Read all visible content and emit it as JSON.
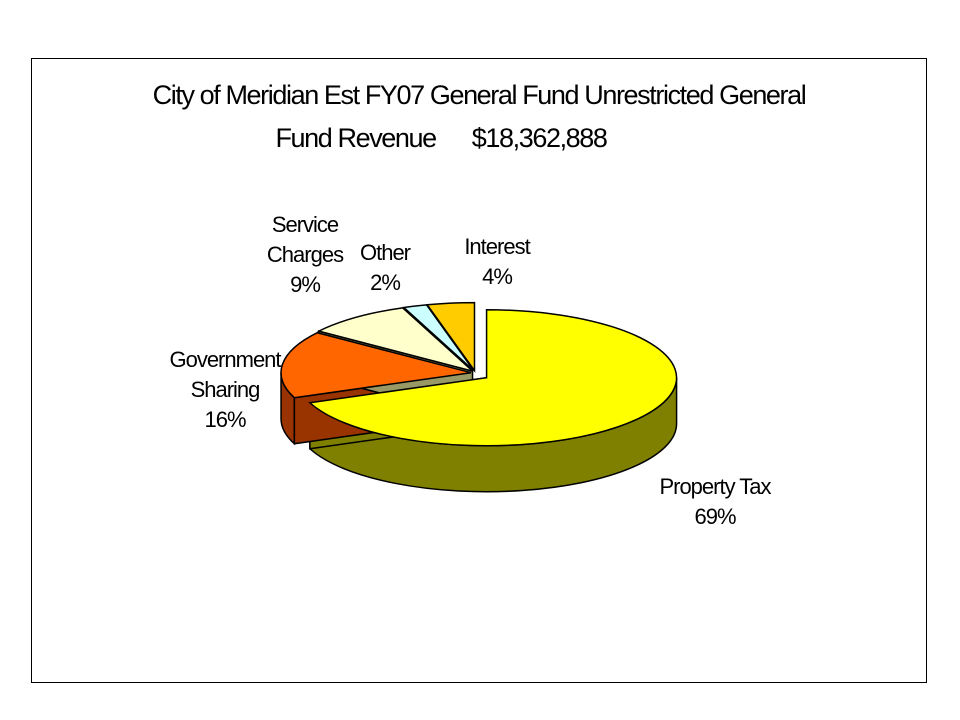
{
  "chart_data": {
    "type": "pie",
    "title": "City of Meridian Est FY07 General Fund Unrestricted General",
    "subtitle_label": "Fund Revenue",
    "subtitle_amount": "$18,362,888",
    "slices": [
      {
        "name": "Property Tax",
        "value": 69,
        "label": "69%",
        "color": "#ffff00",
        "side_color": "#808000"
      },
      {
        "name": "Government Sharing",
        "name_line1": "Government",
        "name_line2": "Sharing",
        "value": 16,
        "label": "16%",
        "color": "#ff6600",
        "side_color": "#993300"
      },
      {
        "name": "Service Charges",
        "name_line1": "Service",
        "name_line2": "Charges",
        "value": 9,
        "label": "9%",
        "color": "#ffffcc",
        "side_color": "#999966"
      },
      {
        "name": "Other",
        "value": 2,
        "label": "2%",
        "color": "#ccffff",
        "side_color": "#669999"
      },
      {
        "name": "Interest",
        "value": 4,
        "label": "4%",
        "color": "#ffcc00",
        "side_color": "#996600"
      }
    ],
    "legend": "none",
    "exploded": [
      "Property Tax"
    ]
  }
}
